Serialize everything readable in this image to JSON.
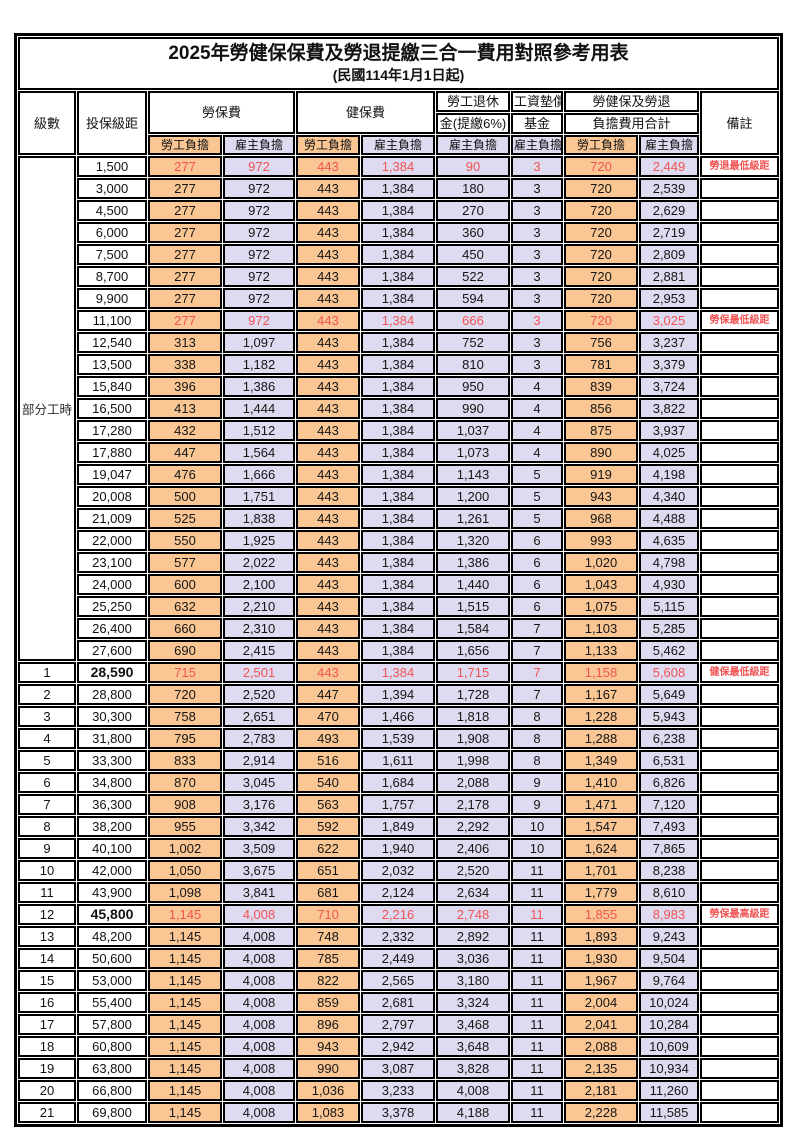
{
  "title": "2025年勞健保保費及勞退提繳三合一費用對照參考用表",
  "subtitle": "(民國114年1月1日起)",
  "colors": {
    "worker_bg": "#FAC693",
    "employer_bg": "#DEDAF0",
    "highlight": "#F25454",
    "border": "#000000"
  },
  "header": {
    "level": "級數",
    "bracket": "投保級距",
    "labor_insurance": "勞保費",
    "health_insurance": "健保費",
    "pension_line1": "勞工退休",
    "pension_line2": "金(提繳6%)",
    "wage_fund_line1": "工資墊償",
    "wage_fund_line2": "基金",
    "total_line1": "勞健保及勞退",
    "total_line2": "負擔費用合計",
    "remark": "備註",
    "worker": "勞工負擔",
    "employer": "雇主負擔"
  },
  "part_time_label": "部分工時",
  "rows": [
    {
      "section": "pt",
      "level": "",
      "bracket": "1,500",
      "li_w": "277",
      "li_e": "972",
      "hi_w": "443",
      "hi_e": "1,384",
      "pension": "90",
      "fund": "3",
      "tot_w": "720",
      "tot_e": "2,449",
      "remark": "勞退最低級距",
      "highlight": true
    },
    {
      "section": "pt",
      "level": "",
      "bracket": "3,000",
      "li_w": "277",
      "li_e": "972",
      "hi_w": "443",
      "hi_e": "1,384",
      "pension": "180",
      "fund": "3",
      "tot_w": "720",
      "tot_e": "2,539",
      "remark": ""
    },
    {
      "section": "pt",
      "level": "",
      "bracket": "4,500",
      "li_w": "277",
      "li_e": "972",
      "hi_w": "443",
      "hi_e": "1,384",
      "pension": "270",
      "fund": "3",
      "tot_w": "720",
      "tot_e": "2,629",
      "remark": ""
    },
    {
      "section": "pt",
      "level": "",
      "bracket": "6,000",
      "li_w": "277",
      "li_e": "972",
      "hi_w": "443",
      "hi_e": "1,384",
      "pension": "360",
      "fund": "3",
      "tot_w": "720",
      "tot_e": "2,719",
      "remark": ""
    },
    {
      "section": "pt",
      "level": "",
      "bracket": "7,500",
      "li_w": "277",
      "li_e": "972",
      "hi_w": "443",
      "hi_e": "1,384",
      "pension": "450",
      "fund": "3",
      "tot_w": "720",
      "tot_e": "2,809",
      "remark": ""
    },
    {
      "section": "pt",
      "level": "",
      "bracket": "8,700",
      "li_w": "277",
      "li_e": "972",
      "hi_w": "443",
      "hi_e": "1,384",
      "pension": "522",
      "fund": "3",
      "tot_w": "720",
      "tot_e": "2,881",
      "remark": ""
    },
    {
      "section": "pt",
      "level": "",
      "bracket": "9,900",
      "li_w": "277",
      "li_e": "972",
      "hi_w": "443",
      "hi_e": "1,384",
      "pension": "594",
      "fund": "3",
      "tot_w": "720",
      "tot_e": "2,953",
      "remark": ""
    },
    {
      "section": "pt",
      "level": "",
      "bracket": "11,100",
      "li_w": "277",
      "li_e": "972",
      "hi_w": "443",
      "hi_e": "1,384",
      "pension": "666",
      "fund": "3",
      "tot_w": "720",
      "tot_e": "3,025",
      "remark": "勞保最低級距",
      "highlight": true
    },
    {
      "section": "pt",
      "level": "",
      "bracket": "12,540",
      "li_w": "313",
      "li_e": "1,097",
      "hi_w": "443",
      "hi_e": "1,384",
      "pension": "752",
      "fund": "3",
      "tot_w": "756",
      "tot_e": "3,237",
      "remark": ""
    },
    {
      "section": "pt",
      "level": "",
      "bracket": "13,500",
      "li_w": "338",
      "li_e": "1,182",
      "hi_w": "443",
      "hi_e": "1,384",
      "pension": "810",
      "fund": "3",
      "tot_w": "781",
      "tot_e": "3,379",
      "remark": ""
    },
    {
      "section": "pt",
      "level": "",
      "bracket": "15,840",
      "li_w": "396",
      "li_e": "1,386",
      "hi_w": "443",
      "hi_e": "1,384",
      "pension": "950",
      "fund": "4",
      "tot_w": "839",
      "tot_e": "3,724",
      "remark": ""
    },
    {
      "section": "pt",
      "level": "",
      "bracket": "16,500",
      "li_w": "413",
      "li_e": "1,444",
      "hi_w": "443",
      "hi_e": "1,384",
      "pension": "990",
      "fund": "4",
      "tot_w": "856",
      "tot_e": "3,822",
      "remark": ""
    },
    {
      "section": "pt",
      "level": "",
      "bracket": "17,280",
      "li_w": "432",
      "li_e": "1,512",
      "hi_w": "443",
      "hi_e": "1,384",
      "pension": "1,037",
      "fund": "4",
      "tot_w": "875",
      "tot_e": "3,937",
      "remark": ""
    },
    {
      "section": "pt",
      "level": "",
      "bracket": "17,880",
      "li_w": "447",
      "li_e": "1,564",
      "hi_w": "443",
      "hi_e": "1,384",
      "pension": "1,073",
      "fund": "4",
      "tot_w": "890",
      "tot_e": "4,025",
      "remark": ""
    },
    {
      "section": "pt",
      "level": "",
      "bracket": "19,047",
      "li_w": "476",
      "li_e": "1,666",
      "hi_w": "443",
      "hi_e": "1,384",
      "pension": "1,143",
      "fund": "5",
      "tot_w": "919",
      "tot_e": "4,198",
      "remark": ""
    },
    {
      "section": "pt",
      "level": "",
      "bracket": "20,008",
      "li_w": "500",
      "li_e": "1,751",
      "hi_w": "443",
      "hi_e": "1,384",
      "pension": "1,200",
      "fund": "5",
      "tot_w": "943",
      "tot_e": "4,340",
      "remark": ""
    },
    {
      "section": "pt",
      "level": "",
      "bracket": "21,009",
      "li_w": "525",
      "li_e": "1,838",
      "hi_w": "443",
      "hi_e": "1,384",
      "pension": "1,261",
      "fund": "5",
      "tot_w": "968",
      "tot_e": "4,488",
      "remark": ""
    },
    {
      "section": "pt",
      "level": "",
      "bracket": "22,000",
      "li_w": "550",
      "li_e": "1,925",
      "hi_w": "443",
      "hi_e": "1,384",
      "pension": "1,320",
      "fund": "6",
      "tot_w": "993",
      "tot_e": "4,635",
      "remark": ""
    },
    {
      "section": "pt",
      "level": "",
      "bracket": "23,100",
      "li_w": "577",
      "li_e": "2,022",
      "hi_w": "443",
      "hi_e": "1,384",
      "pension": "1,386",
      "fund": "6",
      "tot_w": "1,020",
      "tot_e": "4,798",
      "remark": ""
    },
    {
      "section": "pt",
      "level": "",
      "bracket": "24,000",
      "li_w": "600",
      "li_e": "2,100",
      "hi_w": "443",
      "hi_e": "1,384",
      "pension": "1,440",
      "fund": "6",
      "tot_w": "1,043",
      "tot_e": "4,930",
      "remark": ""
    },
    {
      "section": "pt",
      "level": "",
      "bracket": "25,250",
      "li_w": "632",
      "li_e": "2,210",
      "hi_w": "443",
      "hi_e": "1,384",
      "pension": "1,515",
      "fund": "6",
      "tot_w": "1,075",
      "tot_e": "5,115",
      "remark": ""
    },
    {
      "section": "pt",
      "level": "",
      "bracket": "26,400",
      "li_w": "660",
      "li_e": "2,310",
      "hi_w": "443",
      "hi_e": "1,384",
      "pension": "1,584",
      "fund": "7",
      "tot_w": "1,103",
      "tot_e": "5,285",
      "remark": ""
    },
    {
      "section": "pt",
      "level": "",
      "bracket": "27,600",
      "li_w": "690",
      "li_e": "2,415",
      "hi_w": "443",
      "hi_e": "1,384",
      "pension": "1,656",
      "fund": "7",
      "tot_w": "1,133",
      "tot_e": "5,462",
      "remark": ""
    },
    {
      "section": "lv",
      "level": "1",
      "bracket": "28,590",
      "li_w": "715",
      "li_e": "2,501",
      "hi_w": "443",
      "hi_e": "1,384",
      "pension": "1,715",
      "fund": "7",
      "tot_w": "1,158",
      "tot_e": "5,608",
      "remark": "健保最低級距",
      "highlight": true,
      "bold": true
    },
    {
      "section": "lv",
      "level": "2",
      "bracket": "28,800",
      "li_w": "720",
      "li_e": "2,520",
      "hi_w": "447",
      "hi_e": "1,394",
      "pension": "1,728",
      "fund": "7",
      "tot_w": "1,167",
      "tot_e": "5,649",
      "remark": ""
    },
    {
      "section": "lv",
      "level": "3",
      "bracket": "30,300",
      "li_w": "758",
      "li_e": "2,651",
      "hi_w": "470",
      "hi_e": "1,466",
      "pension": "1,818",
      "fund": "8",
      "tot_w": "1,228",
      "tot_e": "5,943",
      "remark": ""
    },
    {
      "section": "lv",
      "level": "4",
      "bracket": "31,800",
      "li_w": "795",
      "li_e": "2,783",
      "hi_w": "493",
      "hi_e": "1,539",
      "pension": "1,908",
      "fund": "8",
      "tot_w": "1,288",
      "tot_e": "6,238",
      "remark": ""
    },
    {
      "section": "lv",
      "level": "5",
      "bracket": "33,300",
      "li_w": "833",
      "li_e": "2,914",
      "hi_w": "516",
      "hi_e": "1,611",
      "pension": "1,998",
      "fund": "8",
      "tot_w": "1,349",
      "tot_e": "6,531",
      "remark": ""
    },
    {
      "section": "lv",
      "level": "6",
      "bracket": "34,800",
      "li_w": "870",
      "li_e": "3,045",
      "hi_w": "540",
      "hi_e": "1,684",
      "pension": "2,088",
      "fund": "9",
      "tot_w": "1,410",
      "tot_e": "6,826",
      "remark": ""
    },
    {
      "section": "lv",
      "level": "7",
      "bracket": "36,300",
      "li_w": "908",
      "li_e": "3,176",
      "hi_w": "563",
      "hi_e": "1,757",
      "pension": "2,178",
      "fund": "9",
      "tot_w": "1,471",
      "tot_e": "7,120",
      "remark": ""
    },
    {
      "section": "lv",
      "level": "8",
      "bracket": "38,200",
      "li_w": "955",
      "li_e": "3,342",
      "hi_w": "592",
      "hi_e": "1,849",
      "pension": "2,292",
      "fund": "10",
      "tot_w": "1,547",
      "tot_e": "7,493",
      "remark": ""
    },
    {
      "section": "lv",
      "level": "9",
      "bracket": "40,100",
      "li_w": "1,002",
      "li_e": "3,509",
      "hi_w": "622",
      "hi_e": "1,940",
      "pension": "2,406",
      "fund": "10",
      "tot_w": "1,624",
      "tot_e": "7,865",
      "remark": ""
    },
    {
      "section": "lv",
      "level": "10",
      "bracket": "42,000",
      "li_w": "1,050",
      "li_e": "3,675",
      "hi_w": "651",
      "hi_e": "2,032",
      "pension": "2,520",
      "fund": "11",
      "tot_w": "1,701",
      "tot_e": "8,238",
      "remark": ""
    },
    {
      "section": "lv",
      "level": "11",
      "bracket": "43,900",
      "li_w": "1,098",
      "li_e": "3,841",
      "hi_w": "681",
      "hi_e": "2,124",
      "pension": "2,634",
      "fund": "11",
      "tot_w": "1,779",
      "tot_e": "8,610",
      "remark": ""
    },
    {
      "section": "lv",
      "level": "12",
      "bracket": "45,800",
      "li_w": "1,145",
      "li_e": "4,008",
      "hi_w": "710",
      "hi_e": "2,216",
      "pension": "2,748",
      "fund": "11",
      "tot_w": "1,855",
      "tot_e": "8,983",
      "remark": "勞保最高級距",
      "highlight": true,
      "bold": true
    },
    {
      "section": "lv",
      "level": "13",
      "bracket": "48,200",
      "li_w": "1,145",
      "li_e": "4,008",
      "hi_w": "748",
      "hi_e": "2,332",
      "pension": "2,892",
      "fund": "11",
      "tot_w": "1,893",
      "tot_e": "9,243",
      "remark": ""
    },
    {
      "section": "lv",
      "level": "14",
      "bracket": "50,600",
      "li_w": "1,145",
      "li_e": "4,008",
      "hi_w": "785",
      "hi_e": "2,449",
      "pension": "3,036",
      "fund": "11",
      "tot_w": "1,930",
      "tot_e": "9,504",
      "remark": ""
    },
    {
      "section": "lv",
      "level": "15",
      "bracket": "53,000",
      "li_w": "1,145",
      "li_e": "4,008",
      "hi_w": "822",
      "hi_e": "2,565",
      "pension": "3,180",
      "fund": "11",
      "tot_w": "1,967",
      "tot_e": "9,764",
      "remark": ""
    },
    {
      "section": "lv",
      "level": "16",
      "bracket": "55,400",
      "li_w": "1,145",
      "li_e": "4,008",
      "hi_w": "859",
      "hi_e": "2,681",
      "pension": "3,324",
      "fund": "11",
      "tot_w": "2,004",
      "tot_e": "10,024",
      "remark": ""
    },
    {
      "section": "lv",
      "level": "17",
      "bracket": "57,800",
      "li_w": "1,145",
      "li_e": "4,008",
      "hi_w": "896",
      "hi_e": "2,797",
      "pension": "3,468",
      "fund": "11",
      "tot_w": "2,041",
      "tot_e": "10,284",
      "remark": ""
    },
    {
      "section": "lv",
      "level": "18",
      "bracket": "60,800",
      "li_w": "1,145",
      "li_e": "4,008",
      "hi_w": "943",
      "hi_e": "2,942",
      "pension": "3,648",
      "fund": "11",
      "tot_w": "2,088",
      "tot_e": "10,609",
      "remark": ""
    },
    {
      "section": "lv",
      "level": "19",
      "bracket": "63,800",
      "li_w": "1,145",
      "li_e": "4,008",
      "hi_w": "990",
      "hi_e": "3,087",
      "pension": "3,828",
      "fund": "11",
      "tot_w": "2,135",
      "tot_e": "10,934",
      "remark": ""
    },
    {
      "section": "lv",
      "level": "20",
      "bracket": "66,800",
      "li_w": "1,145",
      "li_e": "4,008",
      "hi_w": "1,036",
      "hi_e": "3,233",
      "pension": "4,008",
      "fund": "11",
      "tot_w": "2,181",
      "tot_e": "11,260",
      "remark": ""
    },
    {
      "section": "lv",
      "level": "21",
      "bracket": "69,800",
      "li_w": "1,145",
      "li_e": "4,008",
      "hi_w": "1,083",
      "hi_e": "3,378",
      "pension": "4,188",
      "fund": "11",
      "tot_w": "2,228",
      "tot_e": "11,585",
      "remark": ""
    }
  ]
}
